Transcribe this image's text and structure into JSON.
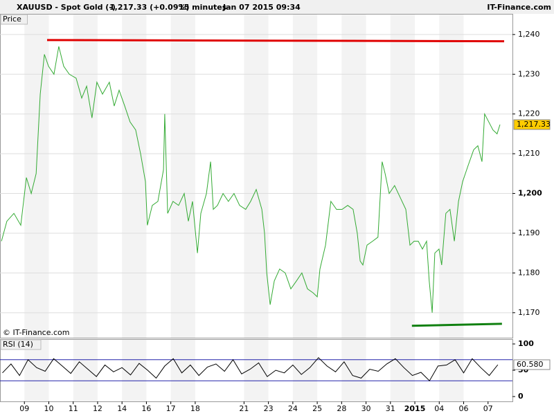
{
  "header": {
    "symbol": "XAUUSD - Spot Gold (-)",
    "quote": "1,217.33 (+0.09%)",
    "interval": "15 minutes",
    "datetime": "Jan 07 2015 09:34",
    "brand": "IT-Finance.com"
  },
  "chart_data": [
    {
      "type": "line",
      "title": "Price",
      "watermark": "© IT-Finance.com",
      "color": "#33aa33",
      "xlim": [
        0,
        21
      ],
      "xticks": [
        {
          "value": 1,
          "label": "09"
        },
        {
          "value": 2,
          "label": "10"
        },
        {
          "value": 3,
          "label": "11"
        },
        {
          "value": 4,
          "label": "12"
        },
        {
          "value": 5,
          "label": "14"
        },
        {
          "value": 6,
          "label": "16"
        },
        {
          "value": 7,
          "label": "17"
        },
        {
          "value": 8,
          "label": "18"
        },
        {
          "value": 10,
          "label": "21"
        },
        {
          "value": 11,
          "label": "23"
        },
        {
          "value": 12,
          "label": "24"
        },
        {
          "value": 13,
          "label": "25"
        },
        {
          "value": 14,
          "label": "28"
        },
        {
          "value": 15,
          "label": "30"
        },
        {
          "value": 16,
          "label": "31"
        },
        {
          "value": 17,
          "label": "2015"
        },
        {
          "value": 18,
          "label": "04"
        },
        {
          "value": 19,
          "label": "06"
        },
        {
          "value": 20,
          "label": "07"
        }
      ],
      "ylim": [
        1163.7,
        1245.2
      ],
      "yticks": [
        {
          "value": 1170,
          "label": "1,170"
        },
        {
          "value": 1180,
          "label": "1,180"
        },
        {
          "value": 1190,
          "label": "1,190"
        },
        {
          "value": 1200,
          "label": "1,200"
        },
        {
          "value": 1210,
          "label": "1,210"
        },
        {
          "value": 1220,
          "label": "1,220"
        },
        {
          "value": 1230,
          "label": "1,230"
        },
        {
          "value": 1240,
          "label": "1,240"
        }
      ],
      "grid": true,
      "x": [
        0.06,
        0.28,
        0.57,
        0.85,
        1.08,
        1.28,
        1.48,
        1.65,
        1.82,
        1.99,
        2.21,
        2.41,
        2.61,
        2.84,
        3.12,
        3.35,
        3.55,
        3.77,
        3.97,
        4.2,
        4.48,
        4.68,
        4.88,
        5.11,
        5.33,
        5.56,
        5.76,
        5.96,
        6.04,
        6.24,
        6.47,
        6.7,
        6.75,
        6.87,
        7.09,
        7.32,
        7.55,
        7.72,
        7.89,
        8.09,
        8.23,
        8.46,
        8.63,
        8.74,
        8.91,
        9.14,
        9.36,
        9.59,
        9.82,
        10.07,
        10.27,
        10.5,
        10.73,
        10.84,
        10.93,
        11.07,
        11.24,
        11.46,
        11.69,
        11.92,
        12.15,
        12.37,
        12.6,
        12.83,
        13.0,
        13.11,
        13.34,
        13.56,
        13.79,
        14.02,
        14.25,
        14.47,
        14.64,
        14.76,
        14.87,
        15.04,
        15.27,
        15.49,
        15.66,
        15.78,
        15.95,
        16.17,
        16.4,
        16.63,
        16.8,
        16.97,
        17.14,
        17.31,
        17.48,
        17.59,
        17.71,
        17.82,
        17.99,
        18.1,
        18.27,
        18.44,
        18.62,
        18.79,
        18.96,
        19.18,
        19.41,
        19.58,
        19.75,
        19.86,
        20.03,
        20.2,
        20.37,
        20.49
      ],
      "values": [
        1188,
        1193,
        1195,
        1192,
        1204,
        1200,
        1205,
        1225,
        1235,
        1232,
        1230,
        1237,
        1232,
        1230,
        1229,
        1224,
        1227,
        1219,
        1228,
        1225,
        1228,
        1222,
        1226,
        1222,
        1218,
        1216,
        1210,
        1203,
        1192,
        1197,
        1198,
        1206,
        1220,
        1195,
        1198,
        1197,
        1200,
        1193,
        1198,
        1185,
        1195,
        1200,
        1208,
        1196,
        1197,
        1200,
        1198,
        1200,
        1197,
        1196,
        1198,
        1201,
        1196,
        1190,
        1180,
        1172,
        1178,
        1181,
        1180,
        1176,
        1178,
        1180,
        1176,
        1175,
        1174,
        1181,
        1187,
        1198,
        1196,
        1196,
        1197,
        1196,
        1190,
        1183,
        1182,
        1187,
        1188,
        1189,
        1208,
        1205,
        1200,
        1202,
        1199,
        1196,
        1187,
        1188,
        1188,
        1186,
        1188,
        1178,
        1170,
        1185,
        1186,
        1182,
        1195,
        1196,
        1188,
        1198,
        1203,
        1207,
        1211,
        1212,
        1208,
        1220,
        1218,
        1216,
        1215,
        1217.33
      ],
      "last_value": 1217.33,
      "last_value_label": "1,217.33",
      "trend_lines": [
        {
          "color": "#e00000",
          "x": [
            1.93,
            20.66
          ],
          "y": [
            1238.6,
            1238.3
          ]
        },
        {
          "color": "#108010",
          "x": [
            16.88,
            20.57
          ],
          "y": [
            1166.7,
            1167.2
          ]
        }
      ]
    },
    {
      "type": "line",
      "title": "RSI (14)",
      "color": "#000000",
      "xlim": [
        0,
        21
      ],
      "ylim": [
        -9.2,
        109.2
      ],
      "yticks": [
        0,
        50,
        100
      ],
      "levels": [
        30,
        70
      ],
      "level_color": "#2222aa",
      "x": [
        0.1,
        0.45,
        0.8,
        1.15,
        1.5,
        1.85,
        2.2,
        2.55,
        2.9,
        3.25,
        3.6,
        3.95,
        4.3,
        4.65,
        5,
        5.35,
        5.7,
        6.05,
        6.4,
        6.75,
        7.1,
        7.45,
        7.8,
        8.15,
        8.5,
        8.85,
        9.2,
        9.55,
        9.9,
        10.25,
        10.6,
        10.95,
        11.3,
        11.65,
        12,
        12.35,
        12.7,
        13.05,
        13.4,
        13.75,
        14.1,
        14.45,
        14.8,
        15.15,
        15.5,
        15.85,
        16.2,
        16.55,
        16.9,
        17.25,
        17.6,
        17.95,
        18.3,
        18.65,
        19,
        19.35,
        19.7,
        20.05,
        20.4
      ],
      "values": [
        45,
        62,
        40,
        70,
        55,
        48,
        72,
        58,
        44,
        66,
        52,
        38,
        60,
        47,
        55,
        41,
        63,
        50,
        35,
        58,
        72,
        45,
        60,
        40,
        56,
        62,
        48,
        70,
        43,
        52,
        64,
        38,
        50,
        45,
        60,
        42,
        55,
        74,
        58,
        47,
        66,
        40,
        35,
        52,
        48,
        62,
        72,
        55,
        40,
        46,
        30,
        58,
        60,
        70,
        45,
        72,
        55,
        40,
        60.58
      ],
      "last_value": 60.58,
      "last_value_label": "60.580"
    }
  ]
}
